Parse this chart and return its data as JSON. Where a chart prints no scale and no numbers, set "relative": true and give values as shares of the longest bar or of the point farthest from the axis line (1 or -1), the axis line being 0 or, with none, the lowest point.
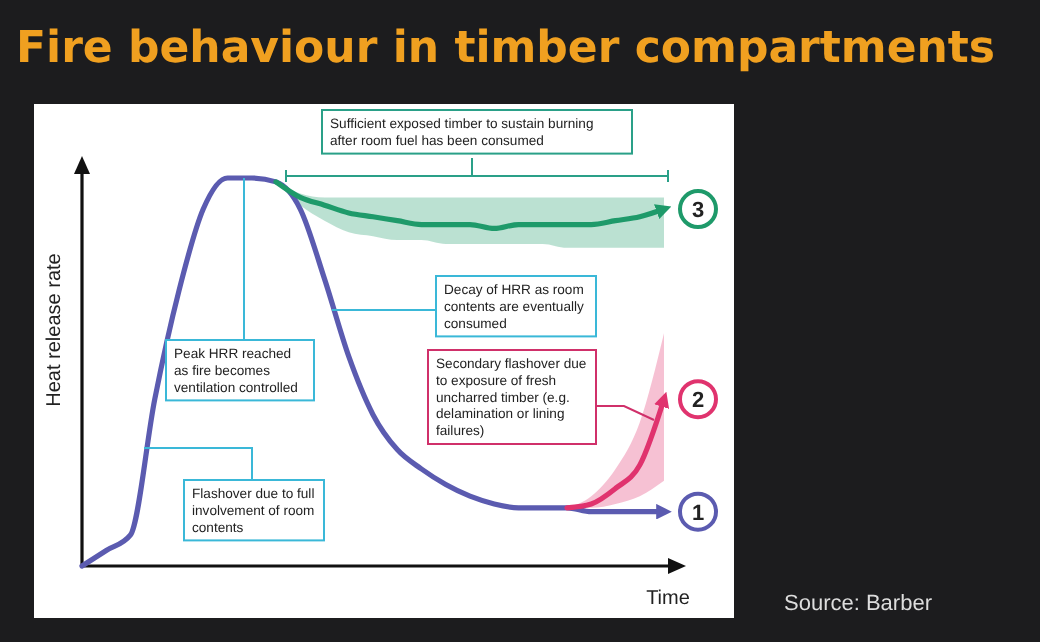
{
  "chart_data": {
    "type": "line",
    "relative": true,
    "title": "Fire behaviour in timber compartments",
    "xlabel": "Time",
    "ylabel": "Heat release rate",
    "annotations": [
      "Sufficient exposed timber to sustain burning after room fuel has been consumed",
      "Peak HRR reached as fire becomes ventilation controlled",
      "Decay of HRR as room contents are eventually consumed",
      "Secondary flashover due to exposure of fresh uncharred timber (e.g. delamination or lining failures)",
      "Flashover due to full involvement of room contents",
      "Source: Barber"
    ],
    "categories": [
      null,
      null,
      null,
      null,
      null,
      null,
      null,
      null,
      null,
      null,
      null,
      null,
      null,
      null,
      null,
      null,
      null,
      null,
      null,
      null,
      null,
      null,
      null,
      null,
      null
    ],
    "series": [
      {
        "name": "1",
        "color": "#5b5bb0",
        "values": [
          0,
          0.04,
          0.08,
          0.43,
          0.71,
          0.92,
          1,
          1,
          0.99,
          0.92,
          0.74,
          0.54,
          0.39,
          0.3,
          0.25,
          0.21,
          0.18,
          0.16,
          0.15,
          0.15,
          0.15,
          0.14,
          0.14,
          0.14,
          0.14
        ]
      },
      {
        "name": "2",
        "color": "#e0336e",
        "values": [
          null,
          null,
          null,
          null,
          null,
          null,
          null,
          null,
          null,
          null,
          null,
          null,
          null,
          null,
          null,
          null,
          null,
          null,
          null,
          null,
          0.15,
          0.16,
          0.2,
          0.26,
          0.43
        ],
        "lower": [
          null,
          null,
          null,
          null,
          null,
          null,
          null,
          null,
          null,
          null,
          null,
          null,
          null,
          null,
          null,
          null,
          null,
          null,
          null,
          null,
          0.15,
          0.15,
          0.16,
          0.18,
          0.22
        ],
        "upper": [
          null,
          null,
          null,
          null,
          null,
          null,
          null,
          null,
          null,
          null,
          null,
          null,
          null,
          null,
          null,
          null,
          null,
          null,
          null,
          null,
          0.15,
          0.18,
          0.25,
          0.37,
          0.6
        ]
      },
      {
        "name": "3",
        "color": "#1e9a6a",
        "values": [
          null,
          null,
          null,
          null,
          null,
          null,
          null,
          null,
          0.99,
          0.95,
          0.93,
          0.91,
          0.9,
          0.89,
          0.88,
          0.88,
          0.88,
          0.87,
          0.88,
          0.88,
          0.88,
          0.88,
          0.89,
          0.9,
          0.92
        ],
        "lower": [
          null,
          null,
          null,
          null,
          null,
          null,
          null,
          null,
          0.99,
          0.93,
          0.89,
          0.86,
          0.85,
          0.84,
          0.84,
          0.83,
          0.83,
          0.83,
          0.83,
          0.83,
          0.82,
          0.82,
          0.82,
          0.82,
          0.82
        ],
        "upper": [
          null,
          null,
          null,
          null,
          null,
          null,
          null,
          null,
          0.99,
          0.96,
          0.95,
          0.95,
          0.95,
          0.95,
          0.95,
          0.95,
          0.95,
          0.95,
          0.95,
          0.95,
          0.95,
          0.95,
          0.95,
          0.95,
          0.95
        ]
      }
    ]
  }
}
